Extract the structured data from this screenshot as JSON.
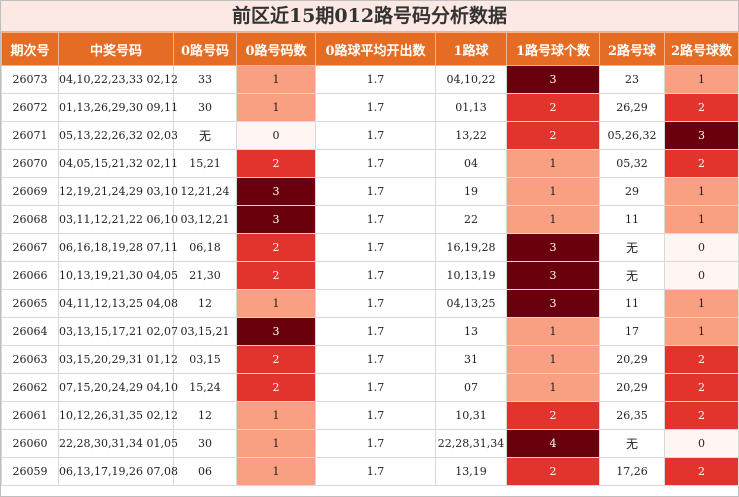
{
  "title": "前区近15期012路号码分析数据",
  "headers": [
    "期次号",
    "中奖号码",
    "0路号码",
    "0路号码数",
    "0路球平均开出数",
    "1路球",
    "1路号球个数",
    "2路号球",
    "2路号球数"
  ],
  "rows": [
    {
      "issue": "26073",
      "numbers": "04,10,22,23,33 02,12",
      "r0": "33",
      "c0": "1",
      "avg": "1.7",
      "r1": "04,10,22",
      "c1": "3",
      "r2": "23",
      "c2": "1"
    },
    {
      "issue": "26072",
      "numbers": "01,13,26,29,30 09,11",
      "r0": "30",
      "c0": "1",
      "avg": "1.7",
      "r1": "01,13",
      "c1": "2",
      "r2": "26,29",
      "c2": "2"
    },
    {
      "issue": "26071",
      "numbers": "05,13,22,26,32 02,03",
      "r0": "无",
      "c0": "0",
      "avg": "1.7",
      "r1": "13,22",
      "c1": "2",
      "r2": "05,26,32",
      "c2": "3"
    },
    {
      "issue": "26070",
      "numbers": "04,05,15,21,32 02,11",
      "r0": "15,21",
      "c0": "2",
      "avg": "1.7",
      "r1": "04",
      "c1": "1",
      "r2": "05,32",
      "c2": "2"
    },
    {
      "issue": "26069",
      "numbers": "12,19,21,24,29 03,10",
      "r0": "12,21,24",
      "c0": "3",
      "avg": "1.7",
      "r1": "19",
      "c1": "1",
      "r2": "29",
      "c2": "1"
    },
    {
      "issue": "26068",
      "numbers": "03,11,12,21,22 06,10",
      "r0": "03,12,21",
      "c0": "3",
      "avg": "1.7",
      "r1": "22",
      "c1": "1",
      "r2": "11",
      "c2": "1"
    },
    {
      "issue": "26067",
      "numbers": "06,16,18,19,28 07,11",
      "r0": "06,18",
      "c0": "2",
      "avg": "1.7",
      "r1": "16,19,28",
      "c1": "3",
      "r2": "无",
      "c2": "0"
    },
    {
      "issue": "26066",
      "numbers": "10,13,19,21,30 04,05",
      "r0": "21,30",
      "c0": "2",
      "avg": "1.7",
      "r1": "10,13,19",
      "c1": "3",
      "r2": "无",
      "c2": "0"
    },
    {
      "issue": "26065",
      "numbers": "04,11,12,13,25 04,08",
      "r0": "12",
      "c0": "1",
      "avg": "1.7",
      "r1": "04,13,25",
      "c1": "3",
      "r2": "11",
      "c2": "1"
    },
    {
      "issue": "26064",
      "numbers": "03,13,15,17,21 02,07",
      "r0": "03,15,21",
      "c0": "3",
      "avg": "1.7",
      "r1": "13",
      "c1": "1",
      "r2": "17",
      "c2": "1"
    },
    {
      "issue": "26063",
      "numbers": "03,15,20,29,31 01,12",
      "r0": "03,15",
      "c0": "2",
      "avg": "1.7",
      "r1": "31",
      "c1": "1",
      "r2": "20,29",
      "c2": "2"
    },
    {
      "issue": "26062",
      "numbers": "07,15,20,24,29 04,10",
      "r0": "15,24",
      "c0": "2",
      "avg": "1.7",
      "r1": "07",
      "c1": "1",
      "r2": "20,29",
      "c2": "2"
    },
    {
      "issue": "26061",
      "numbers": "10,12,26,31,35 02,12",
      "r0": "12",
      "c0": "1",
      "avg": "1.7",
      "r1": "10,31",
      "c1": "2",
      "r2": "26,35",
      "c2": "2"
    },
    {
      "issue": "26060",
      "numbers": "22,28,30,31,34 01,05",
      "r0": "30",
      "c0": "1",
      "avg": "1.7",
      "r1": "22,28,31,34",
      "c1": "4",
      "r2": "无",
      "c2": "0"
    },
    {
      "issue": "26059",
      "numbers": "06,13,17,19,26 07,08",
      "r0": "06",
      "c0": "1",
      "avg": "1.7",
      "r1": "13,19",
      "c1": "2",
      "r2": "17,26",
      "c2": "2"
    }
  ],
  "colors": {
    "header": "#e46c24",
    "count0": "#fff5f2",
    "count1": "#f9a083",
    "count2": "#e2332c",
    "count3": "#6a000b"
  }
}
